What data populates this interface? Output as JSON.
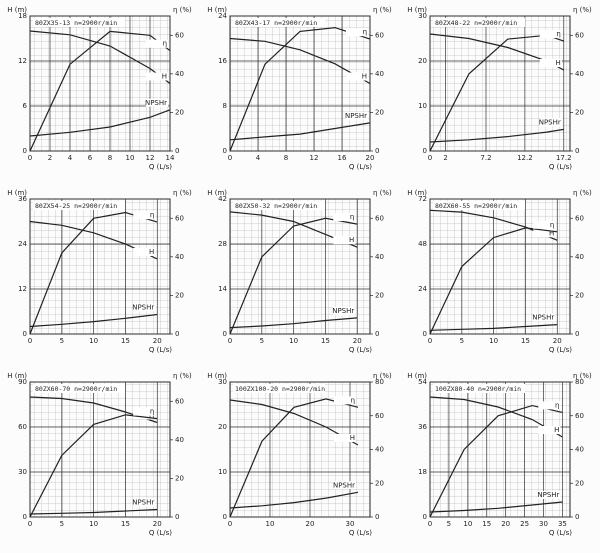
{
  "chart_data": [
    {
      "type": "line",
      "title": "80ZX35-13 n=2900r/min",
      "x_label": "Q (L/s)",
      "y_label": "H (m)",
      "y2_label": "η (%)",
      "x": [
        0,
        4,
        8,
        12,
        14
      ],
      "xlim": [
        0,
        14
      ],
      "xticks": [
        0,
        2,
        4,
        6,
        8,
        10,
        12,
        14
      ],
      "ylim": [
        0,
        18
      ],
      "yticks": [
        0,
        6,
        12,
        18
      ],
      "y2lim": [
        0,
        70
      ],
      "y2ticks": [
        0,
        20,
        40,
        60
      ],
      "series": [
        {
          "name": "H",
          "color": "#222222",
          "values": [
            16,
            15.5,
            14,
            11,
            9
          ]
        },
        {
          "name": "η",
          "color": "#222222",
          "axis": "y2",
          "values": [
            0,
            45,
            62,
            60,
            52
          ]
        },
        {
          "name": "NPSHr",
          "color": "#222222",
          "values": [
            2,
            2.5,
            3.2,
            4.5,
            5.5
          ]
        }
      ]
    },
    {
      "type": "line",
      "title": "80ZX43-17 n=2900r/min",
      "x_label": "Q (L/s)",
      "y_label": "H (m)",
      "y2_label": "η (%)",
      "x": [
        0,
        5,
        10,
        15,
        20
      ],
      "xlim": [
        0,
        20
      ],
      "xticks": [
        0,
        4,
        8,
        12,
        16,
        20
      ],
      "ylim": [
        0,
        24
      ],
      "yticks": [
        0,
        8,
        16,
        24
      ],
      "y2lim": [
        0,
        70
      ],
      "y2ticks": [
        0,
        20,
        40,
        60
      ],
      "series": [
        {
          "name": "H",
          "color": "#222222",
          "values": [
            20,
            19.5,
            18,
            15.5,
            12
          ]
        },
        {
          "name": "η",
          "color": "#222222",
          "axis": "y2",
          "values": [
            0,
            45,
            62,
            64,
            58
          ]
        },
        {
          "name": "NPSHr",
          "color": "#222222",
          "values": [
            2,
            2.5,
            3,
            4,
            5
          ]
        }
      ]
    },
    {
      "type": "line",
      "title": "80ZX48-22 n=2900r/min",
      "x_label": "Q (L/s)",
      "y_label": "H (m)",
      "y2_label": "η (%)",
      "x": [
        0,
        5,
        10,
        15,
        17.2
      ],
      "xlim": [
        0,
        18
      ],
      "xticks": [
        0,
        2,
        7.2,
        12.2,
        17.2
      ],
      "ylim": [
        0,
        30
      ],
      "yticks": [
        0,
        10,
        20,
        30
      ],
      "y2lim": [
        0,
        70
      ],
      "y2ticks": [
        0,
        20,
        40,
        60
      ],
      "series": [
        {
          "name": "H",
          "color": "#222222",
          "values": [
            26,
            25,
            23,
            20,
            18
          ]
        },
        {
          "name": "η",
          "color": "#222222",
          "axis": "y2",
          "values": [
            0,
            40,
            58,
            60,
            57
          ]
        },
        {
          "name": "NPSHr",
          "color": "#222222",
          "values": [
            2,
            2.5,
            3.2,
            4.2,
            4.8
          ]
        }
      ]
    },
    {
      "type": "line",
      "title": "80ZX54-25 n=2900r/min",
      "x_label": "Q (L/s)",
      "y_label": "H (m)",
      "y2_label": "η (%)",
      "x": [
        0,
        5,
        10,
        15,
        20
      ],
      "xlim": [
        0,
        22
      ],
      "xticks": [
        0,
        5,
        10,
        15,
        20
      ],
      "ylim": [
        0,
        36
      ],
      "yticks": [
        0,
        12,
        24,
        36
      ],
      "y2lim": [
        0,
        70
      ],
      "y2ticks": [
        0,
        20,
        40,
        60
      ],
      "series": [
        {
          "name": "H",
          "color": "#222222",
          "values": [
            30,
            29,
            27,
            24,
            20
          ]
        },
        {
          "name": "η",
          "color": "#222222",
          "axis": "y2",
          "values": [
            0,
            42,
            60,
            63,
            58
          ]
        },
        {
          "name": "NPSHr",
          "color": "#222222",
          "values": [
            2,
            2.6,
            3.3,
            4.2,
            5.2
          ]
        }
      ]
    },
    {
      "type": "line",
      "title": "80ZX50-32 n=2900r/min",
      "x_label": "Q (L/s)",
      "y_label": "H (m)",
      "y2_label": "η (%)",
      "x": [
        0,
        5,
        10,
        15,
        20
      ],
      "xlim": [
        0,
        22
      ],
      "xticks": [
        0,
        5,
        10,
        15,
        20
      ],
      "ylim": [
        0,
        42
      ],
      "yticks": [
        0,
        14,
        28,
        42
      ],
      "y2lim": [
        0,
        70
      ],
      "y2ticks": [
        0,
        20,
        40,
        60
      ],
      "series": [
        {
          "name": "H",
          "color": "#222222",
          "values": [
            38,
            37,
            35,
            31,
            27
          ]
        },
        {
          "name": "η",
          "color": "#222222",
          "axis": "y2",
          "values": [
            0,
            40,
            56,
            60,
            57
          ]
        },
        {
          "name": "NPSHr",
          "color": "#222222",
          "values": [
            2,
            2.5,
            3.2,
            4.2,
            5
          ]
        }
      ]
    },
    {
      "type": "line",
      "title": "80ZX60-55 n=2900r/min",
      "x_label": "Q (L/s)",
      "y_label": "H (m)",
      "y2_label": "η (%)",
      "x": [
        0,
        5,
        10,
        15,
        20
      ],
      "xlim": [
        0,
        22
      ],
      "xticks": [
        0,
        5,
        10,
        15,
        20
      ],
      "ylim": [
        0,
        72
      ],
      "yticks": [
        0,
        24,
        48,
        72
      ],
      "y2lim": [
        0,
        70
      ],
      "y2ticks": [
        0,
        20,
        40,
        60
      ],
      "series": [
        {
          "name": "H",
          "color": "#222222",
          "values": [
            66,
            65,
            62,
            57,
            50
          ]
        },
        {
          "name": "η",
          "color": "#222222",
          "axis": "y2",
          "values": [
            0,
            35,
            50,
            55,
            53
          ]
        },
        {
          "name": "NPSHr",
          "color": "#222222",
          "values": [
            2,
            2.5,
            3,
            4,
            5
          ]
        }
      ]
    },
    {
      "type": "line",
      "title": "80ZX60-70 n=2900r/min",
      "x_label": "Q (L/s)",
      "y_label": "H (m)",
      "y2_label": "η (%)",
      "x": [
        0,
        5,
        10,
        15,
        20
      ],
      "xlim": [
        0,
        22
      ],
      "xticks": [
        0,
        5,
        10,
        15,
        20
      ],
      "ylim": [
        0,
        90
      ],
      "yticks": [
        0,
        30,
        60,
        90
      ],
      "y2lim": [
        0,
        70
      ],
      "y2ticks": [
        0,
        20,
        40,
        60
      ],
      "series": [
        {
          "name": "H",
          "color": "#222222",
          "values": [
            80,
            79,
            76,
            70,
            63
          ]
        },
        {
          "name": "η",
          "color": "#222222",
          "axis": "y2",
          "values": [
            0,
            32,
            48,
            53,
            51
          ]
        },
        {
          "name": "NPSHr",
          "color": "#222222",
          "values": [
            2,
            2.5,
            3,
            4,
            5
          ]
        }
      ]
    },
    {
      "type": "line",
      "title": "100ZX100-20 n=2900r/min",
      "x_label": "Q (L/s)",
      "y_label": "H (m)",
      "y2_label": "η (%)",
      "x": [
        0,
        8,
        16,
        24,
        32
      ],
      "xlim": [
        0,
        35
      ],
      "xticks": [
        0,
        10,
        20,
        30
      ],
      "ylim": [
        0,
        30
      ],
      "yticks": [
        0,
        10,
        20,
        30
      ],
      "y2lim": [
        0,
        80
      ],
      "y2ticks": [
        0,
        20,
        40,
        60,
        80
      ],
      "series": [
        {
          "name": "H",
          "color": "#222222",
          "values": [
            26,
            25,
            23,
            20,
            16
          ]
        },
        {
          "name": "η",
          "color": "#222222",
          "axis": "y2",
          "values": [
            0,
            45,
            65,
            70,
            65
          ]
        },
        {
          "name": "NPSHr",
          "color": "#222222",
          "values": [
            2,
            2.5,
            3.2,
            4.2,
            5.5
          ]
        }
      ]
    },
    {
      "type": "line",
      "title": "100ZX80-40 n=2900r/min",
      "x_label": "Q (L/s)",
      "y_label": "H (m)",
      "y2_label": "η (%)",
      "x": [
        0,
        9,
        18,
        27,
        35
      ],
      "xlim": [
        0,
        37
      ],
      "xticks": [
        0,
        5,
        10,
        15,
        20,
        25,
        30,
        35
      ],
      "ylim": [
        0,
        54
      ],
      "yticks": [
        0,
        18,
        36,
        54
      ],
      "y2lim": [
        0,
        80
      ],
      "y2ticks": [
        0,
        20,
        40,
        60,
        80
      ],
      "series": [
        {
          "name": "H",
          "color": "#222222",
          "values": [
            48,
            47,
            44,
            39,
            32
          ]
        },
        {
          "name": "η",
          "color": "#222222",
          "axis": "y2",
          "values": [
            0,
            40,
            60,
            66,
            62
          ]
        },
        {
          "name": "NPSHr",
          "color": "#222222",
          "values": [
            2,
            2.6,
            3.5,
            4.8,
            6
          ]
        }
      ]
    }
  ]
}
